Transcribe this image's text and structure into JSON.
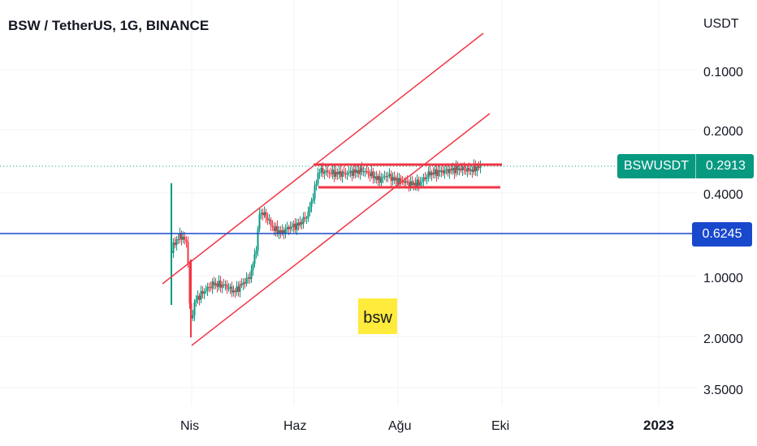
{
  "header": {
    "title": "BSW / TetherUS, 1G, BINANCE"
  },
  "chart_data": {
    "type": "candlestick",
    "title": "BSW / TetherUS, 1G, BINANCE",
    "symbol": "BSWUSDT",
    "exchange": "BINANCE",
    "interval": "1G",
    "y_axis_unit": "USDT",
    "y_scale": "log",
    "y_tick_labels": [
      "0.1000",
      "0.2000",
      "0.4000",
      "1.0000",
      "2.0000",
      "3.5000"
    ],
    "x_tick_labels": [
      "Nis",
      "Haz",
      "Ağu",
      "Eki",
      "2023"
    ],
    "last_price_label": {
      "name": "BSWUSDT",
      "value": "0.2913",
      "color": "#089981"
    },
    "horizontal_line_label": {
      "value": "0.6245",
      "color": "#1848cc"
    },
    "annotation_text": "bsw",
    "colors": {
      "up": "#089981",
      "down": "#f23645",
      "drawing": "#f23645",
      "hline": "#1848cc",
      "badge": "#ffeb3b"
    },
    "grid": true
  }
}
